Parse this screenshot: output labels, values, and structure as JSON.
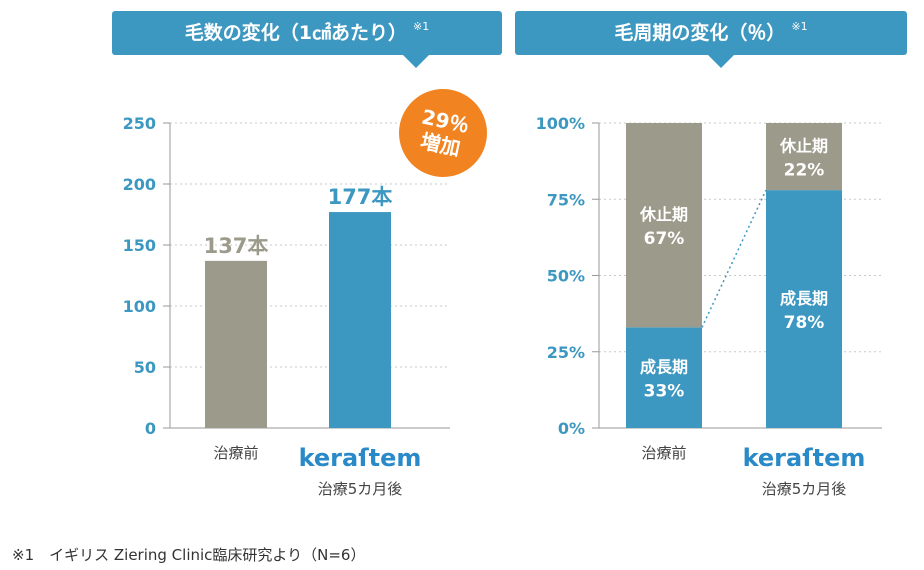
{
  "chart_data": [
    {
      "type": "bar",
      "title": "毛数の変化（1㎠あたり）",
      "title_note": "※1",
      "categories": [
        "治療前",
        "治療5カ月後"
      ],
      "values": [
        137,
        177
      ],
      "value_labels": [
        "137本",
        "177本"
      ],
      "colors": [
        "#9b9a8b",
        "#3d98c1"
      ],
      "ylim": [
        0,
        250
      ],
      "yticks": [
        "0",
        "50",
        "100",
        "150",
        "200",
        "250"
      ],
      "grid": true,
      "annotation": [
        "29％",
        "増加"
      ],
      "annotation_color": "#f18321",
      "brand_logo": "keraſtem"
    },
    {
      "type": "bar",
      "stacked": true,
      "title": "毛周期の変化（％）",
      "title_note": "※1",
      "categories": [
        "治療前",
        "治療5カ月後"
      ],
      "series": [
        {
          "name": "成長期",
          "values": [
            33,
            78
          ],
          "labels": [
            "33%",
            "78%"
          ],
          "color": "#3d98c1"
        },
        {
          "name": "休止期",
          "values": [
            67,
            22
          ],
          "labels": [
            "67%",
            "22%"
          ],
          "color": "#9b9a8b"
        }
      ],
      "ylim": [
        0,
        100
      ],
      "yticks": [
        "0%",
        "25%",
        "50%",
        "75%",
        "100%"
      ],
      "grid": true,
      "brand_logo": "keraſtem"
    }
  ],
  "footnote": "※1　イギリス Ziering Clinic臨床研究より（N=6）"
}
